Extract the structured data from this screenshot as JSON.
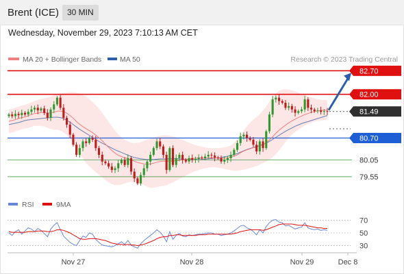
{
  "header": {
    "symbol": "Brent (ICE)",
    "timeframe": "30 MIN"
  },
  "datetime": "Wednesday, November 29, 2023 7:10:13 AM CET",
  "legend": {
    "ma20": "MA 20 + Bollinger Bands",
    "ma50": "MA 50",
    "watermark": "Research © 2023 Trading Central"
  },
  "rsi_legend": {
    "rsi": "RSI",
    "ma9": "9MA"
  },
  "colors": {
    "up_candle": "#2e9a2e",
    "down_candle": "#c21b1b",
    "resistance": "#e01010",
    "support": "#1f5fd6",
    "target_line": "#4c9a4c",
    "ma20": "#f08080",
    "bollinger_fill": "#fde3e3",
    "ma50": "#6a7fb0",
    "arrow": "#2e5ea8",
    "price_box": "#2f2f2f",
    "rsi": "#6a86d6",
    "rsi_ma": "#e01010"
  },
  "chart_data": [
    {
      "type": "candlestick",
      "title": "Brent (ICE)",
      "timeframe": "30 MIN",
      "x_ticks": [
        "Nov 27",
        "Nov 28",
        "Nov 29",
        "Dec 8"
      ],
      "ylim": [
        79.1,
        82.85
      ],
      "price_levels": [
        {
          "value": 82.7,
          "label": "82.70",
          "kind": "resistance"
        },
        {
          "value": 82.0,
          "label": "82.00",
          "kind": "resistance"
        },
        {
          "value": 81.49,
          "label": "81.49",
          "kind": "last_price"
        },
        {
          "value": 80.7,
          "label": "80.70",
          "kind": "support"
        },
        {
          "value": 80.05,
          "label": "80.05",
          "kind": "target"
        },
        {
          "value": 79.55,
          "label": "79.55",
          "kind": "target"
        }
      ],
      "close": [
        81.4,
        81.35,
        81.42,
        81.38,
        81.45,
        81.4,
        81.48,
        81.55,
        81.6,
        81.52,
        81.58,
        81.45,
        81.3,
        81.55,
        81.7,
        81.9,
        81.6,
        81.3,
        81.1,
        80.8,
        80.5,
        80.2,
        80.4,
        80.6,
        80.55,
        80.7,
        80.65,
        80.4,
        80.2,
        80.0,
        79.95,
        79.85,
        79.75,
        79.8,
        79.95,
        80.05,
        79.9,
        80.1,
        79.7,
        79.5,
        79.35,
        79.6,
        79.8,
        80.0,
        80.2,
        80.4,
        80.6,
        80.45,
        80.2,
        79.75,
        80.4,
        79.9,
        80.1,
        80.2,
        80.05,
        80.0,
        80.1,
        80.05,
        80.08,
        80.12,
        80.1,
        80.15,
        80.2,
        80.18,
        80.12,
        80.1,
        80.0,
        80.05,
        80.1,
        80.2,
        80.35,
        80.55,
        80.75,
        80.8,
        80.7,
        80.65,
        80.5,
        80.3,
        80.6,
        80.4,
        80.9,
        81.4,
        81.85,
        81.9,
        81.8,
        81.75,
        81.6,
        81.65,
        81.55,
        81.45,
        81.5,
        81.55,
        81.85,
        81.6,
        81.55,
        81.5,
        81.52,
        81.48,
        81.5,
        81.49
      ],
      "ma20": [
        81.2,
        81.22,
        81.25,
        81.28,
        81.31,
        81.33,
        81.36,
        81.4,
        81.43,
        81.44,
        81.46,
        81.46,
        81.44,
        81.45,
        81.47,
        81.5,
        81.5,
        81.48,
        81.44,
        81.37,
        81.29,
        81.19,
        81.11,
        81.04,
        80.98,
        80.92,
        80.86,
        80.79,
        80.71,
        80.62,
        80.52,
        80.42,
        80.33,
        80.25,
        80.19,
        80.15,
        80.11,
        80.09,
        80.05,
        80.01,
        79.97,
        79.95,
        79.93,
        79.92,
        79.93,
        79.95,
        79.98,
        80.0,
        80.01,
        80.0,
        80.01,
        80.01,
        80.02,
        80.04,
        80.05,
        80.06,
        80.08,
        80.09,
        80.1,
        80.1,
        80.1,
        80.1,
        80.11,
        80.11,
        80.11,
        80.1,
        80.1,
        80.1,
        80.11,
        80.13,
        80.16,
        80.2,
        80.26,
        80.31,
        80.35,
        80.38,
        80.41,
        80.43,
        80.47,
        80.5,
        80.56,
        80.64,
        80.74,
        80.84,
        80.93,
        81.01,
        81.08,
        81.15,
        81.21,
        81.26,
        81.31,
        81.35,
        81.4,
        81.43,
        81.46,
        81.49,
        81.51,
        81.52,
        81.53,
        81.53
      ],
      "bollinger_upper": [
        81.55,
        81.57,
        81.6,
        81.63,
        81.66,
        81.69,
        81.72,
        81.76,
        81.8,
        81.83,
        81.86,
        81.88,
        81.9,
        81.94,
        81.98,
        82.02,
        82.03,
        82.04,
        82.05,
        82.06,
        82.06,
        82.05,
        82.02,
        81.98,
        81.93,
        81.86,
        81.78,
        81.68,
        81.57,
        81.45,
        81.32,
        81.18,
        81.05,
        80.92,
        80.81,
        80.72,
        80.65,
        80.6,
        80.56,
        80.55,
        80.56,
        80.58,
        80.61,
        80.65,
        80.68,
        80.71,
        80.74,
        80.77,
        80.78,
        80.78,
        80.77,
        80.75,
        80.72,
        80.68,
        80.64,
        80.6,
        80.56,
        80.52,
        80.49,
        80.46,
        80.44,
        80.42,
        80.41,
        80.4,
        80.4,
        80.4,
        80.41,
        80.42,
        80.44,
        80.48,
        80.55,
        80.65,
        80.78,
        80.92,
        81.05,
        81.16,
        81.25,
        81.33,
        81.42,
        81.52,
        81.64,
        81.78,
        81.92,
        82.03,
        82.1,
        82.14,
        82.15,
        82.14,
        82.12,
        82.09,
        82.05,
        82.01,
        81.98,
        81.94,
        81.91,
        81.88,
        81.86,
        81.84,
        81.83,
        81.82
      ],
      "bollinger_lower": [
        80.85,
        80.87,
        80.9,
        80.93,
        80.96,
        80.98,
        81.0,
        81.03,
        81.06,
        81.06,
        81.06,
        81.04,
        81.0,
        80.97,
        80.95,
        80.95,
        80.92,
        80.87,
        80.8,
        80.69,
        80.55,
        80.38,
        80.22,
        80.08,
        79.96,
        79.86,
        79.77,
        79.69,
        79.61,
        79.53,
        79.45,
        79.38,
        79.33,
        79.3,
        79.3,
        79.32,
        79.35,
        79.38,
        79.4,
        79.4,
        79.38,
        79.35,
        79.3,
        79.25,
        79.22,
        79.22,
        79.24,
        79.26,
        79.28,
        79.3,
        79.34,
        79.38,
        79.43,
        79.48,
        79.53,
        79.58,
        79.63,
        79.68,
        79.72,
        79.75,
        79.78,
        79.8,
        79.82,
        79.83,
        79.83,
        79.82,
        79.8,
        79.78,
        79.76,
        79.74,
        79.73,
        79.73,
        79.74,
        79.76,
        79.78,
        79.81,
        79.84,
        79.87,
        79.91,
        79.95,
        80.0,
        80.06,
        80.13,
        80.22,
        80.33,
        80.45,
        80.58,
        80.7,
        80.8,
        80.88,
        80.95,
        81.01,
        81.07,
        81.12,
        81.16,
        81.19,
        81.21,
        81.22,
        81.23,
        81.24
      ],
      "ma50": [
        81.1,
        81.12,
        81.14,
        81.16,
        81.19,
        81.22,
        81.24,
        81.25,
        81.26,
        81.27,
        81.28,
        81.29,
        81.3,
        81.31,
        81.32,
        81.32,
        81.31,
        81.28,
        81.23,
        81.17,
        81.1,
        81.03,
        80.96,
        80.9,
        80.84,
        80.78,
        80.72,
        80.66,
        80.6,
        80.55,
        80.5,
        80.45,
        80.4,
        80.35,
        80.31,
        80.27,
        80.23,
        80.19,
        80.15,
        80.12,
        80.1,
        80.08,
        80.07,
        80.06,
        80.06,
        80.06,
        80.07,
        80.08,
        80.08,
        80.08,
        80.09,
        80.09,
        80.09,
        80.08,
        80.07,
        80.07,
        80.06,
        80.06,
        80.06,
        80.06,
        80.06,
        80.07,
        80.08,
        80.09,
        80.1,
        80.11,
        80.12,
        80.14,
        80.16,
        80.18,
        80.21,
        80.24,
        80.28,
        80.32,
        80.36,
        80.39,
        80.42,
        80.45,
        80.48,
        80.51,
        80.55,
        80.6,
        80.66,
        80.72,
        80.78,
        80.84,
        80.9,
        80.95,
        81.0,
        81.05,
        81.09,
        81.13,
        81.16,
        81.19,
        81.22,
        81.25,
        81.28,
        81.31,
        81.34,
        81.37
      ]
    },
    {
      "type": "line",
      "title": "RSI",
      "yticks": [
        70,
        50,
        30
      ],
      "ylim": [
        22,
        78
      ],
      "series": [
        {
          "name": "RSI",
          "values": [
            50,
            46,
            52,
            55,
            48,
            53,
            58,
            56,
            52,
            57,
            54,
            49,
            44,
            56,
            62,
            66,
            55,
            45,
            40,
            35,
            32,
            30,
            38,
            45,
            43,
            50,
            48,
            40,
            35,
            31,
            30,
            29,
            28,
            30,
            33,
            36,
            32,
            38,
            31,
            28,
            26,
            33,
            38,
            42,
            46,
            50,
            55,
            51,
            45,
            36,
            52,
            40,
            46,
            49,
            45,
            44,
            47,
            46,
            47,
            48,
            48,
            49,
            50,
            50,
            48,
            48,
            46,
            47,
            48,
            50,
            53,
            57,
            61,
            62,
            58,
            56,
            52,
            47,
            55,
            50,
            60,
            66,
            70,
            71,
            67,
            66,
            61,
            62,
            59,
            56,
            58,
            59,
            66,
            58,
            56,
            55,
            56,
            54,
            55,
            54
          ]
        },
        {
          "name": "9MA",
          "values": [
            52,
            51,
            51,
            51,
            51,
            51,
            52,
            52,
            52,
            53,
            53,
            53,
            52,
            52,
            53,
            55,
            55,
            54,
            52,
            50,
            47,
            44,
            41,
            40,
            40,
            41,
            41,
            41,
            40,
            39,
            38,
            36,
            34,
            33,
            32,
            32,
            31,
            32,
            31,
            31,
            30,
            31,
            32,
            34,
            36,
            38,
            41,
            43,
            44,
            44,
            46,
            46,
            47,
            47,
            46,
            46,
            46,
            46,
            46,
            47,
            47,
            47,
            48,
            48,
            48,
            48,
            48,
            48,
            48,
            48,
            49,
            50,
            52,
            53,
            54,
            55,
            55,
            55,
            55,
            54,
            55,
            57,
            59,
            61,
            63,
            64,
            64,
            64,
            64,
            63,
            62,
            62,
            62,
            61,
            60,
            59,
            58,
            58,
            57,
            57
          ]
        }
      ]
    }
  ]
}
